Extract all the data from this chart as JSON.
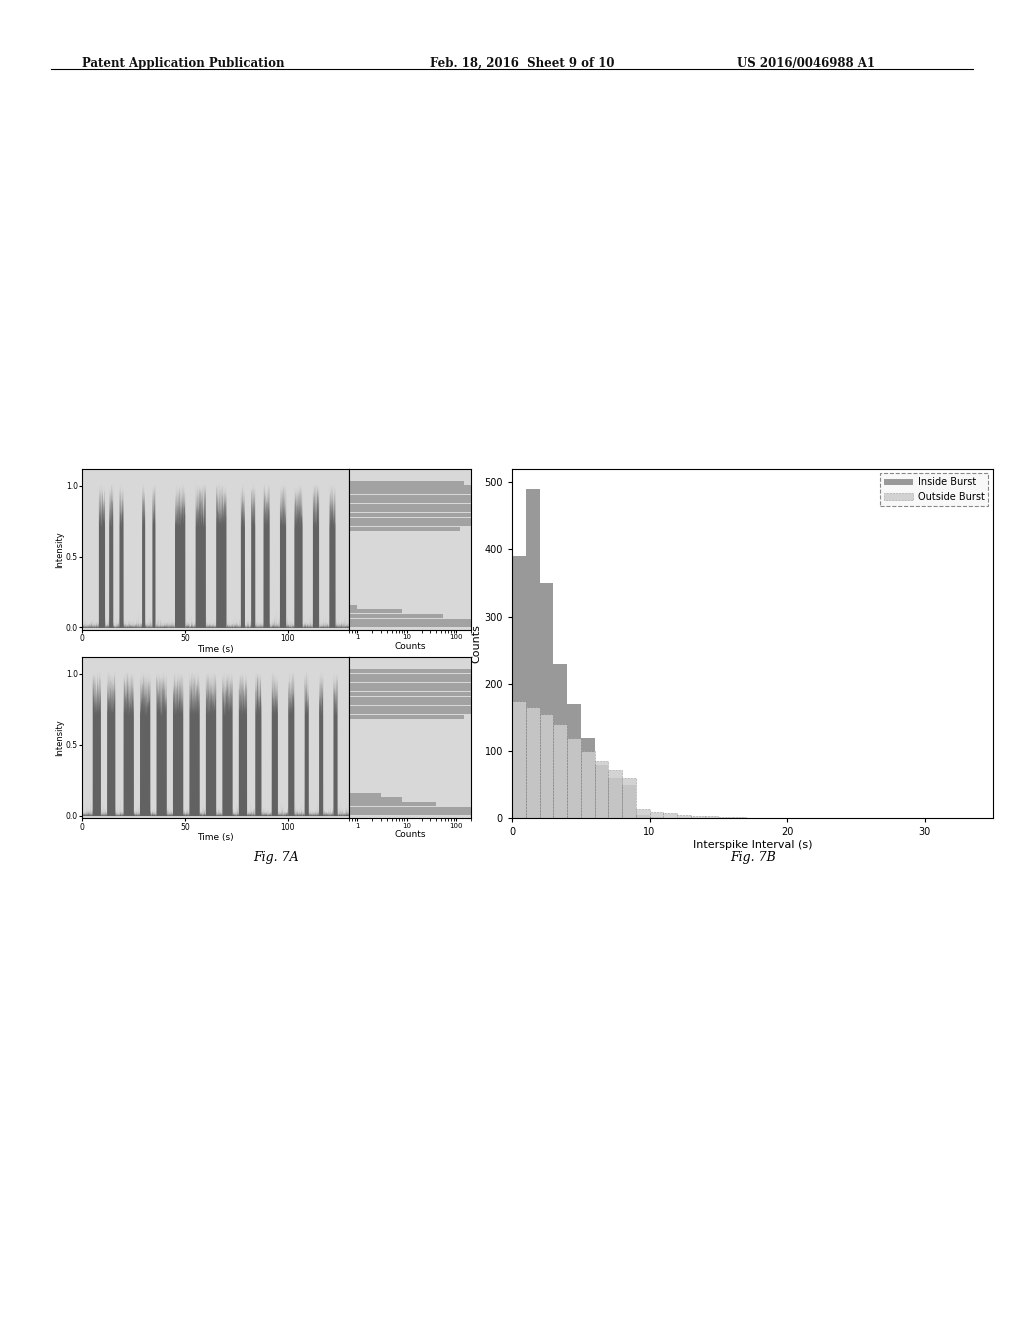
{
  "title_text": "Patent Application Publication    Feb. 18, 2016  Sheet 9 of 10    US 2016/0046988 A1",
  "fig7a_label": "Fig. 7A",
  "fig7b_label": "Fig. 7B",
  "background_color": "#ffffff",
  "plot_bg_color": "#d8d8d8",
  "time_xlabel": "Time (s)",
  "counts_xlabel": "Counts",
  "intensity_ylabel": "Intensity",
  "interspike_xlabel": "Interspike Interval (s)",
  "counts_ylabel": "Counts",
  "inside_burst_label": "Inside Burst",
  "outside_burst_label": "Outside Burst"
}
